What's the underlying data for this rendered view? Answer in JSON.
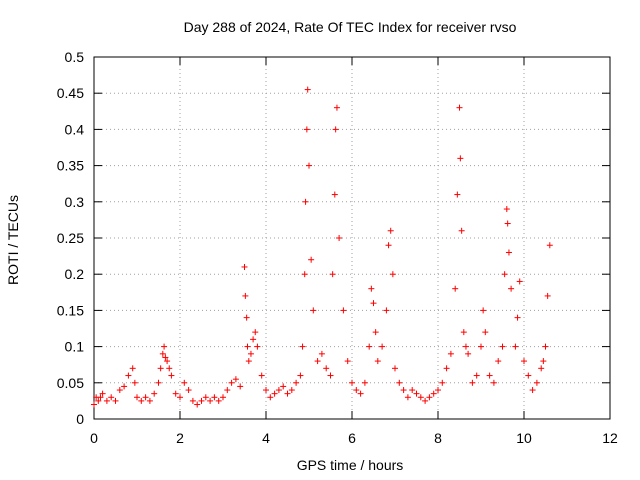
{
  "chart_data": {
    "type": "scatter",
    "title": "Day 288 of 2024, Rate Of TEC Index for receiver rvso",
    "xlabel": "GPS time / hours",
    "ylabel": "ROTI / TECUs",
    "xlim": [
      0,
      12
    ],
    "ylim": [
      0,
      0.5
    ],
    "x_ticks": [
      0,
      2,
      4,
      6,
      8,
      10,
      12
    ],
    "x_tick_labels": [
      "0",
      "2",
      "4",
      "6",
      "8",
      "10",
      "12"
    ],
    "y_ticks": [
      0,
      0.05,
      0.1,
      0.15,
      0.2,
      0.25,
      0.3,
      0.35,
      0.4,
      0.45,
      0.5
    ],
    "y_tick_labels": [
      "0",
      "0.05",
      "0.1",
      "0.15",
      "0.2",
      "0.25",
      "0.3",
      "0.35",
      "0.4",
      "0.45",
      "0.5"
    ],
    "grid": true,
    "marker": "+",
    "color": "#ff0000",
    "series": [
      {
        "name": "ROTI",
        "x": [
          0.0,
          0.05,
          0.1,
          0.15,
          0.2,
          0.3,
          0.4,
          0.5,
          0.6,
          0.7,
          0.8,
          0.9,
          0.95,
          1.0,
          1.1,
          1.2,
          1.3,
          1.4,
          1.5,
          1.55,
          1.6,
          1.63,
          1.66,
          1.7,
          1.75,
          1.8,
          1.9,
          2.0,
          2.1,
          2.2,
          2.3,
          2.4,
          2.5,
          2.6,
          2.7,
          2.8,
          2.9,
          3.0,
          3.1,
          3.2,
          3.3,
          3.4,
          3.5,
          3.52,
          3.55,
          3.57,
          3.6,
          3.65,
          3.7,
          3.75,
          3.8,
          3.9,
          4.0,
          4.1,
          4.2,
          4.3,
          4.4,
          4.5,
          4.6,
          4.7,
          4.8,
          4.85,
          4.9,
          4.92,
          4.95,
          4.97,
          5.0,
          5.05,
          5.1,
          5.2,
          5.3,
          5.4,
          5.5,
          5.55,
          5.6,
          5.62,
          5.65,
          5.7,
          5.8,
          5.9,
          6.0,
          6.1,
          6.2,
          6.3,
          6.4,
          6.45,
          6.5,
          6.55,
          6.6,
          6.7,
          6.8,
          6.85,
          6.9,
          6.95,
          7.0,
          7.1,
          7.2,
          7.3,
          7.4,
          7.5,
          7.6,
          7.7,
          7.8,
          7.9,
          8.0,
          8.1,
          8.2,
          8.3,
          8.4,
          8.45,
          8.5,
          8.52,
          8.55,
          8.6,
          8.65,
          8.7,
          8.8,
          8.9,
          9.0,
          9.05,
          9.1,
          9.2,
          9.3,
          9.4,
          9.5,
          9.55,
          9.6,
          9.62,
          9.65,
          9.7,
          9.8,
          9.85,
          9.9,
          10.0,
          10.1,
          10.2,
          10.3,
          10.4,
          10.45,
          10.5,
          10.55,
          10.6
        ],
        "y": [
          0.02,
          0.03,
          0.025,
          0.03,
          0.035,
          0.025,
          0.03,
          0.025,
          0.04,
          0.045,
          0.06,
          0.07,
          0.05,
          0.03,
          0.025,
          0.03,
          0.025,
          0.035,
          0.05,
          0.07,
          0.09,
          0.1,
          0.085,
          0.08,
          0.07,
          0.06,
          0.035,
          0.03,
          0.05,
          0.04,
          0.025,
          0.02,
          0.025,
          0.03,
          0.025,
          0.03,
          0.025,
          0.03,
          0.04,
          0.05,
          0.055,
          0.045,
          0.21,
          0.17,
          0.14,
          0.1,
          0.08,
          0.09,
          0.11,
          0.12,
          0.1,
          0.06,
          0.04,
          0.03,
          0.035,
          0.04,
          0.045,
          0.035,
          0.04,
          0.05,
          0.06,
          0.1,
          0.2,
          0.3,
          0.4,
          0.455,
          0.35,
          0.22,
          0.15,
          0.08,
          0.09,
          0.07,
          0.06,
          0.2,
          0.31,
          0.4,
          0.43,
          0.25,
          0.15,
          0.08,
          0.05,
          0.04,
          0.035,
          0.05,
          0.1,
          0.18,
          0.16,
          0.12,
          0.08,
          0.1,
          0.15,
          0.24,
          0.26,
          0.2,
          0.07,
          0.05,
          0.04,
          0.03,
          0.04,
          0.035,
          0.03,
          0.025,
          0.03,
          0.035,
          0.04,
          0.05,
          0.07,
          0.09,
          0.18,
          0.31,
          0.43,
          0.36,
          0.26,
          0.12,
          0.1,
          0.09,
          0.05,
          0.06,
          0.1,
          0.15,
          0.12,
          0.06,
          0.05,
          0.08,
          0.1,
          0.2,
          0.29,
          0.27,
          0.23,
          0.18,
          0.1,
          0.14,
          0.19,
          0.08,
          0.06,
          0.04,
          0.05,
          0.07,
          0.08,
          0.1,
          0.17,
          0.24
        ]
      }
    ]
  }
}
